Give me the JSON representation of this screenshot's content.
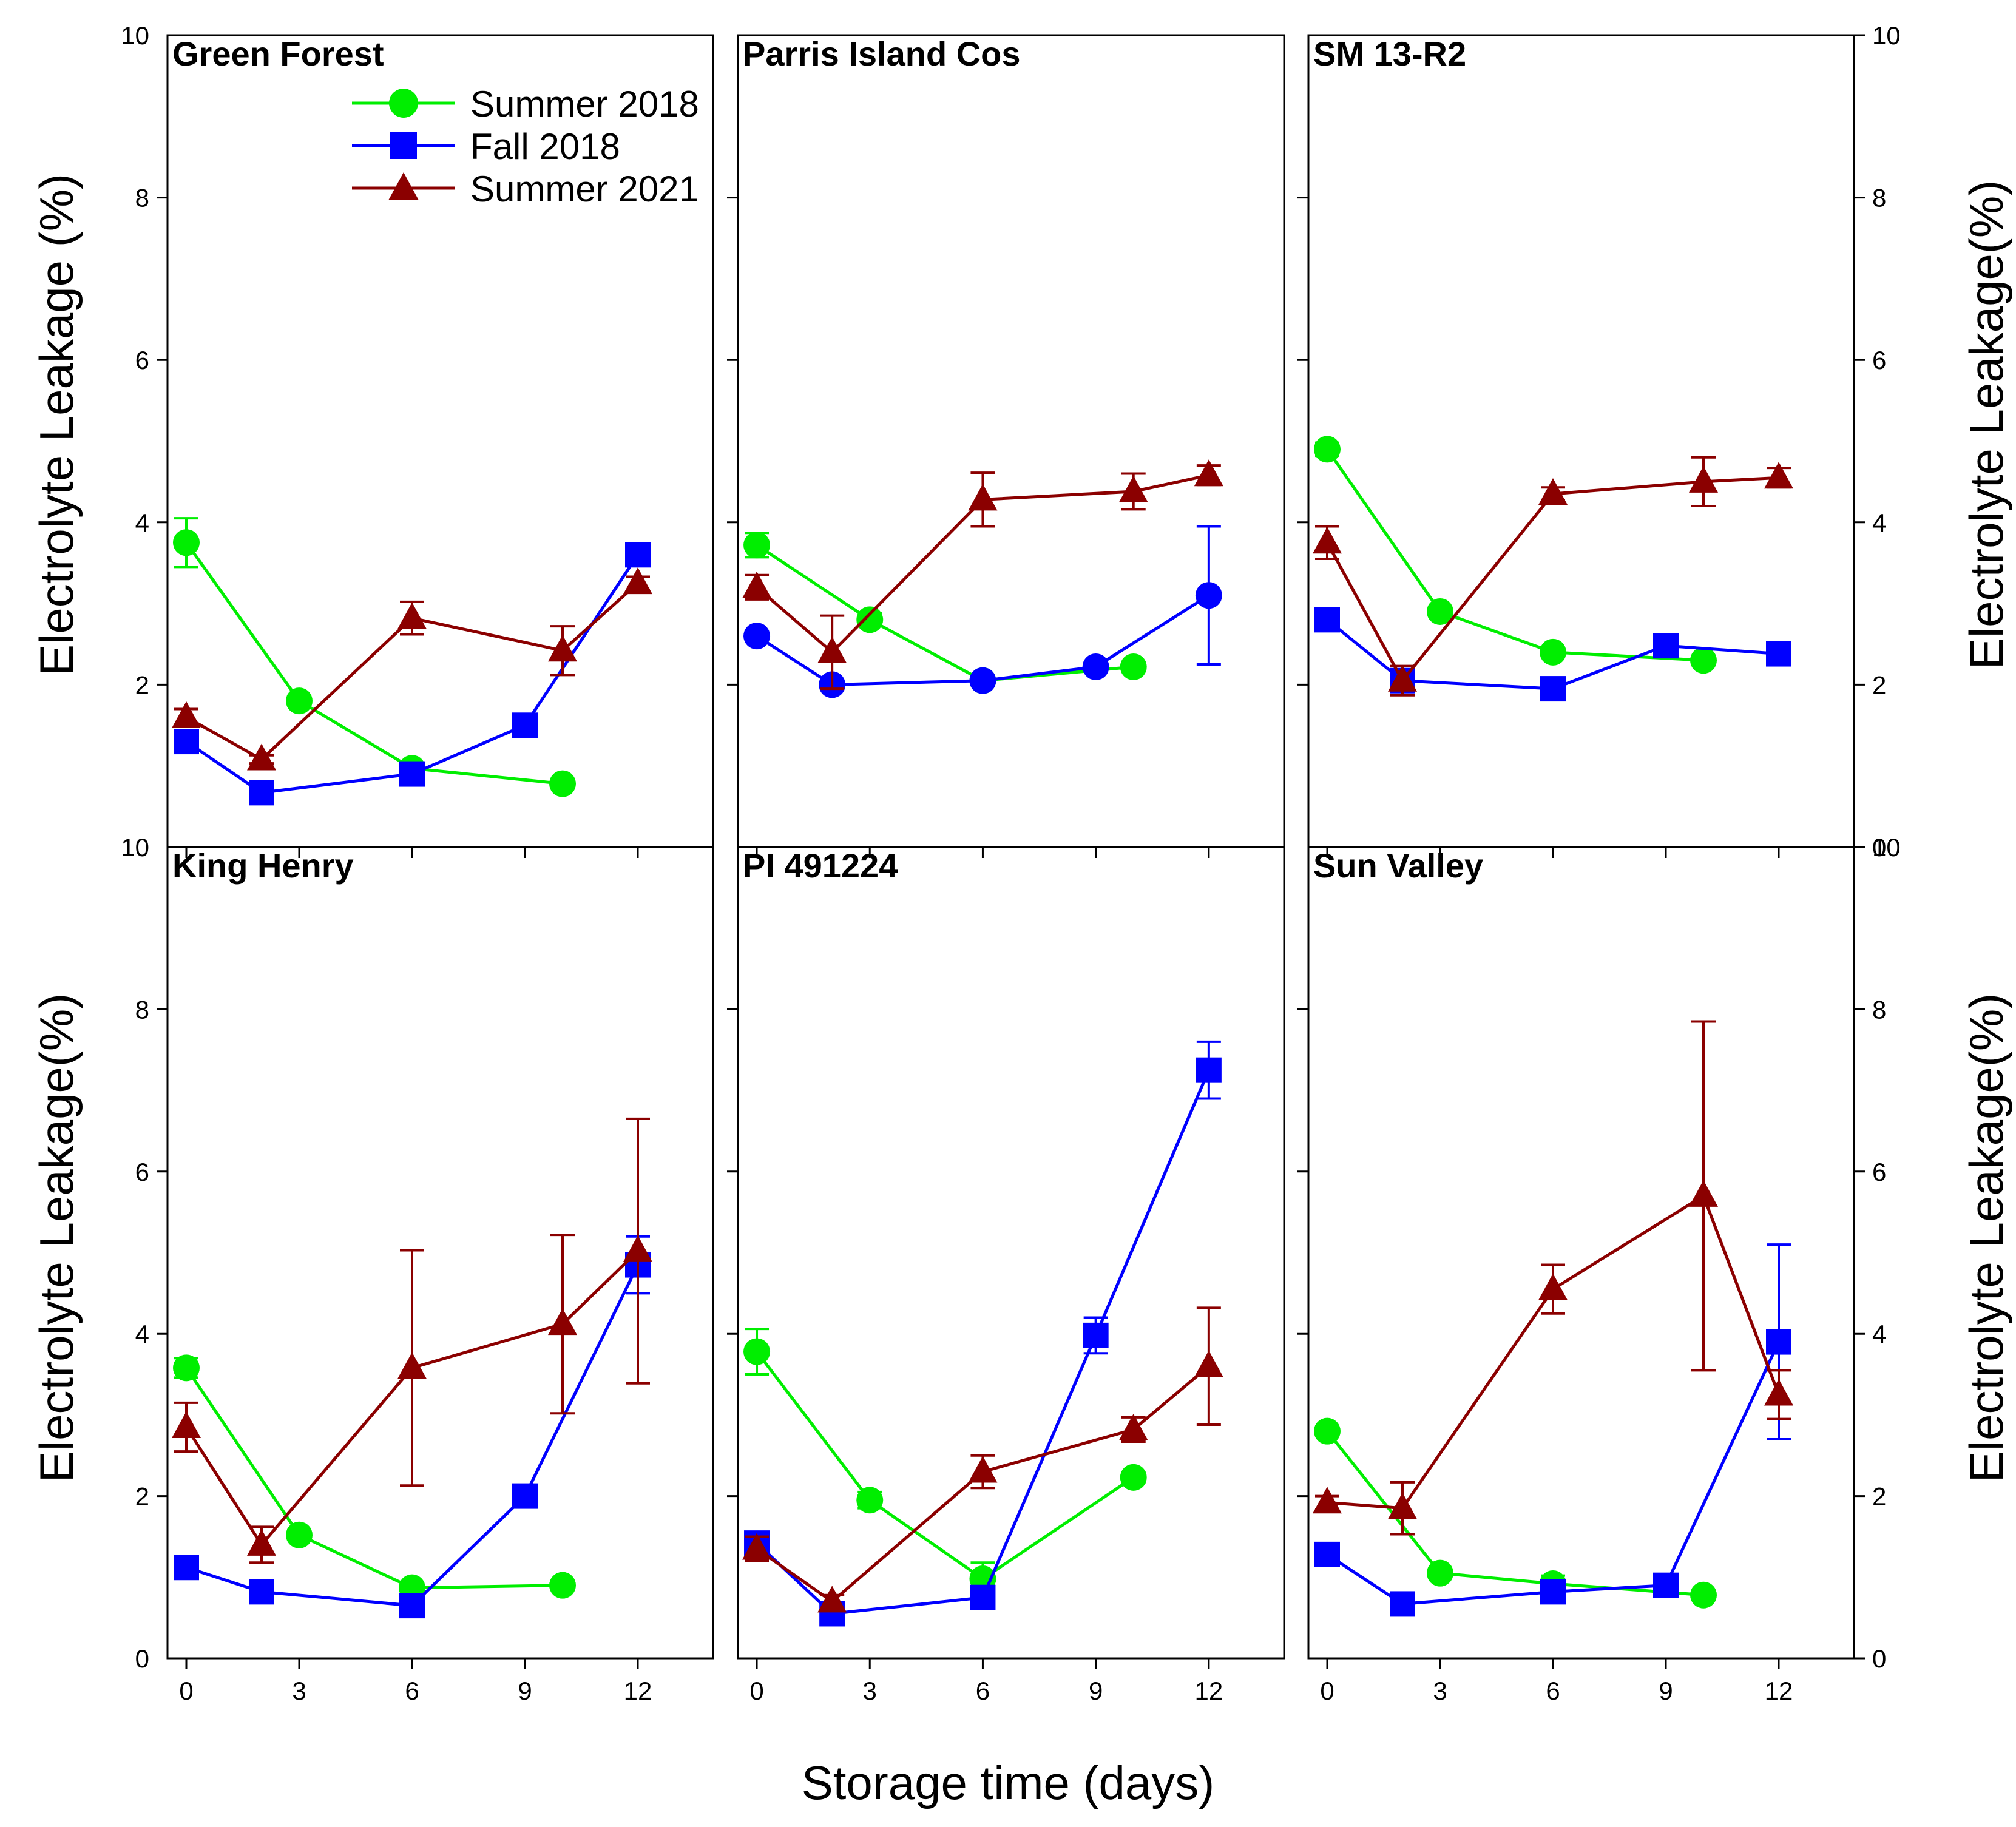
{
  "figure": {
    "x_title": "Storage time (days)",
    "y_title_left_top": "Electrolyte Leakage (%)",
    "y_title_left_bottom": "Electrolyte Leakage(%)",
    "y_title_right_top": "Electrolyte Leakage(%)",
    "y_title_right_bottom": "Electrolyte Leakage(%)"
  },
  "legend": {
    "entries": [
      {
        "name": "Summer 2018",
        "color": "#00ee00",
        "marker": "circle"
      },
      {
        "name": "Fall 2018",
        "color": "#0000ff",
        "marker": "square"
      },
      {
        "name": "Summer 2021",
        "color": "#8b0000",
        "marker": "triangle"
      }
    ]
  },
  "chart_data": [
    {
      "type": "line",
      "title": "Green Forest",
      "xlabel": "Storage time (days)",
      "ylabel": "Electrolyte Leakage (%)",
      "xlim": [
        -0.5,
        14
      ],
      "ylim": [
        0,
        10
      ],
      "xticks": [
        0,
        3,
        6,
        9,
        12
      ],
      "yticks": [
        2,
        4,
        6,
        8,
        10
      ],
      "yticks_right": [],
      "series": [
        {
          "name": "Summer 2018",
          "marker": "circle",
          "color": "#00ee00",
          "x": [
            0,
            3,
            6,
            10
          ],
          "y": [
            3.75,
            1.8,
            0.97,
            0.78
          ],
          "err": [
            0.3,
            0.05,
            0.05,
            0.05
          ]
        },
        {
          "name": "Fall 2018",
          "marker": "square",
          "color": "#0000ff",
          "x": [
            0,
            2,
            6,
            9,
            12
          ],
          "y": [
            1.3,
            0.67,
            0.9,
            1.5,
            3.6
          ],
          "err": [
            0.08,
            0.05,
            0.05,
            0.06,
            0.1
          ]
        },
        {
          "name": "Summer 2021",
          "marker": "triangle",
          "color": "#8b0000",
          "x": [
            0,
            2,
            6,
            10,
            12
          ],
          "y": [
            1.6,
            1.08,
            2.82,
            2.42,
            3.25
          ],
          "err": [
            0.1,
            0.05,
            0.2,
            0.3,
            0.08
          ]
        }
      ]
    },
    {
      "type": "line",
      "title": "Parris Island Cos",
      "xlabel": "Storage time (days)",
      "ylabel": "Electrolyte Leakage (%)",
      "xlim": [
        -0.5,
        14
      ],
      "ylim": [
        0,
        10
      ],
      "xticks": [
        0,
        3,
        6,
        9,
        12
      ],
      "yticks": [],
      "yticks_right": [],
      "series": [
        {
          "name": "Summer 2018",
          "marker": "circle",
          "color": "#00ee00",
          "x": [
            0,
            3,
            6,
            10
          ],
          "y": [
            3.72,
            2.8,
            2.05,
            2.22
          ],
          "err": [
            0.15,
            0.08,
            0.05,
            0.05
          ]
        },
        {
          "name": "Fall 2018",
          "marker": "circle",
          "color": "#0000ff",
          "x": [
            0,
            2,
            6,
            9,
            12
          ],
          "y": [
            2.6,
            2.0,
            2.05,
            2.22,
            3.1
          ],
          "err": [
            0.05,
            0.05,
            0.05,
            0.05,
            0.85
          ]
        },
        {
          "name": "Summer 2021",
          "marker": "triangle",
          "color": "#8b0000",
          "x": [
            0,
            2,
            6,
            10,
            12
          ],
          "y": [
            3.2,
            2.4,
            4.28,
            4.38,
            4.58
          ],
          "err": [
            0.15,
            0.45,
            0.33,
            0.22,
            0.12
          ]
        }
      ]
    },
    {
      "type": "line",
      "title": "SM 13-R2",
      "xlabel": "Storage time (days)",
      "ylabel": "Electrolyte Leakage(%)",
      "xlim": [
        -0.5,
        14
      ],
      "ylim": [
        0,
        10
      ],
      "xticks": [
        0,
        3,
        6,
        9,
        12
      ],
      "yticks": [],
      "yticks_right": [
        0,
        2,
        4,
        6,
        8,
        10
      ],
      "series": [
        {
          "name": "Summer 2018",
          "marker": "circle",
          "color": "#00ee00",
          "x": [
            0,
            3,
            6,
            10
          ],
          "y": [
            4.9,
            2.9,
            2.4,
            2.3
          ],
          "err": [
            0.08,
            0.05,
            0.05,
            0.05
          ]
        },
        {
          "name": "Fall 2018",
          "marker": "square",
          "color": "#0000ff",
          "x": [
            0,
            2,
            6,
            9,
            12
          ],
          "y": [
            2.8,
            2.05,
            1.95,
            2.48,
            2.38
          ],
          "err": [
            0.05,
            0.05,
            0.05,
            0.05,
            0.05
          ]
        },
        {
          "name": "Summer 2021",
          "marker": "triangle",
          "color": "#8b0000",
          "x": [
            0,
            2,
            6,
            10,
            12
          ],
          "y": [
            3.75,
            2.05,
            4.35,
            4.5,
            4.55
          ],
          "err": [
            0.2,
            0.18,
            0.08,
            0.3,
            0.12
          ]
        }
      ]
    },
    {
      "type": "line",
      "title": "King Henry",
      "xlabel": "Storage time (days)",
      "ylabel": "Electrolyte Leakage(%)",
      "xlim": [
        -0.5,
        14
      ],
      "ylim": [
        0,
        10
      ],
      "xticks": [
        0,
        3,
        6,
        9,
        12
      ],
      "yticks": [
        0,
        2,
        4,
        6,
        8,
        10
      ],
      "yticks_right": [],
      "series": [
        {
          "name": "Summer 2018",
          "marker": "circle",
          "color": "#00ee00",
          "x": [
            0,
            3,
            6,
            10
          ],
          "y": [
            3.58,
            1.52,
            0.87,
            0.9
          ],
          "err": [
            0.12,
            0.06,
            0.05,
            0.05
          ]
        },
        {
          "name": "Fall 2018",
          "marker": "square",
          "color": "#0000ff",
          "x": [
            0,
            2,
            6,
            9,
            12
          ],
          "y": [
            1.12,
            0.82,
            0.65,
            2.0,
            4.85
          ],
          "err": [
            0.05,
            0.05,
            0.05,
            0.06,
            0.35
          ]
        },
        {
          "name": "Summer 2021",
          "marker": "triangle",
          "color": "#8b0000",
          "x": [
            0,
            2,
            6,
            10,
            12
          ],
          "y": [
            2.85,
            1.4,
            3.58,
            4.12,
            5.02
          ],
          "err": [
            0.3,
            0.22,
            1.45,
            1.1,
            1.63
          ]
        }
      ]
    },
    {
      "type": "line",
      "title": "PI 491224",
      "xlabel": "Storage time (days)",
      "ylabel": "Electrolyte Leakage(%)",
      "xlim": [
        -0.5,
        14
      ],
      "ylim": [
        0,
        10
      ],
      "xticks": [
        0,
        3,
        6,
        9,
        12
      ],
      "yticks": [],
      "yticks_right": [],
      "series": [
        {
          "name": "Summer 2018",
          "marker": "circle",
          "color": "#00ee00",
          "x": [
            0,
            3,
            6,
            10
          ],
          "y": [
            3.78,
            1.95,
            0.98,
            2.23
          ],
          "err": [
            0.28,
            0.1,
            0.2,
            0.06
          ]
        },
        {
          "name": "Fall 2018",
          "marker": "square",
          "color": "#0000ff",
          "x": [
            0,
            2,
            6,
            9,
            12
          ],
          "y": [
            1.42,
            0.55,
            0.75,
            3.98,
            7.25
          ],
          "err": [
            0.1,
            0.05,
            0.06,
            0.22,
            0.35
          ]
        },
        {
          "name": "Summer 2021",
          "marker": "triangle",
          "color": "#8b0000",
          "x": [
            0,
            2,
            6,
            10,
            12
          ],
          "y": [
            1.35,
            0.7,
            2.3,
            2.82,
            3.6
          ],
          "err": [
            0.15,
            0.08,
            0.2,
            0.15,
            0.72
          ]
        }
      ]
    },
    {
      "type": "line",
      "title": "Sun Valley",
      "xlabel": "Storage time (days)",
      "ylabel": "Electrolyte Leakage(%)",
      "xlim": [
        -0.5,
        14
      ],
      "ylim": [
        0,
        10
      ],
      "xticks": [
        0,
        3,
        6,
        9,
        12
      ],
      "yticks": [],
      "yticks_right": [
        0,
        2,
        4,
        6,
        8,
        10
      ],
      "series": [
        {
          "name": "Summer 2018",
          "marker": "circle",
          "color": "#00ee00",
          "x": [
            0,
            3,
            6,
            10
          ],
          "y": [
            2.8,
            1.05,
            0.92,
            0.78
          ],
          "err": [
            0.06,
            0.05,
            0.1,
            0.05
          ]
        },
        {
          "name": "Fall 2018",
          "marker": "square",
          "color": "#0000ff",
          "x": [
            0,
            2,
            6,
            9,
            12
          ],
          "y": [
            1.28,
            0.67,
            0.82,
            0.9,
            3.9
          ],
          "err": [
            0.08,
            0.05,
            0.05,
            0.05,
            1.2
          ]
        },
        {
          "name": "Summer 2021",
          "marker": "triangle",
          "color": "#8b0000",
          "x": [
            0,
            2,
            6,
            10,
            12
          ],
          "y": [
            1.92,
            1.85,
            4.55,
            5.7,
            3.25
          ],
          "err": [
            0.08,
            0.32,
            0.3,
            2.15,
            0.3
          ]
        }
      ]
    }
  ]
}
